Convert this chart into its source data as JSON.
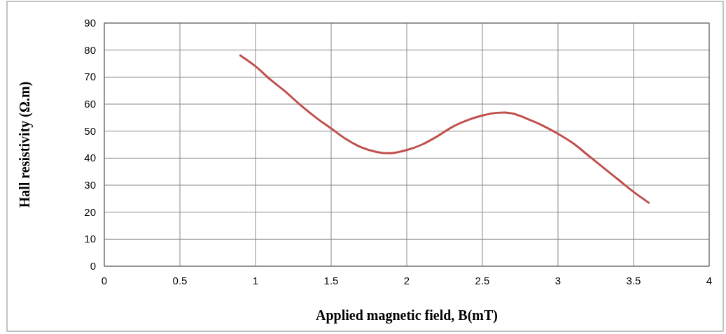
{
  "chart_data": {
    "type": "line",
    "xlabel": "Applied magnetic field, B(mT)",
    "ylabel": "Hall resistivity (Ω.m)",
    "xlim": [
      0,
      4
    ],
    "xticks": [
      0,
      0.5,
      1,
      1.5,
      2,
      2.5,
      3,
      3.5,
      4
    ],
    "ylim": [
      0,
      90
    ],
    "yticks": [
      0,
      10,
      20,
      30,
      40,
      50,
      60,
      70,
      80,
      90
    ],
    "grid": true,
    "marker": "none",
    "line_style": "solid",
    "series": [
      {
        "color": "#c0504d",
        "x": [
          0.9,
          1.0,
          1.1,
          1.2,
          1.3,
          1.4,
          1.5,
          1.6,
          1.7,
          1.8,
          1.88,
          2.0,
          2.1,
          2.2,
          2.3,
          2.4,
          2.5,
          2.6,
          2.65,
          2.7,
          2.8,
          2.9,
          3.0,
          3.1,
          3.2,
          3.3,
          3.4,
          3.5,
          3.6
        ],
        "values": [
          78,
          74,
          69,
          64.5,
          59.5,
          55,
          51,
          47,
          44,
          42.3,
          41.8,
          43,
          45,
          48,
          51.5,
          54,
          55.8,
          56.8,
          56.9,
          56.5,
          54.5,
          52,
          49,
          45.5,
          41,
          36.5,
          32,
          27.5,
          23.5
        ]
      }
    ]
  }
}
